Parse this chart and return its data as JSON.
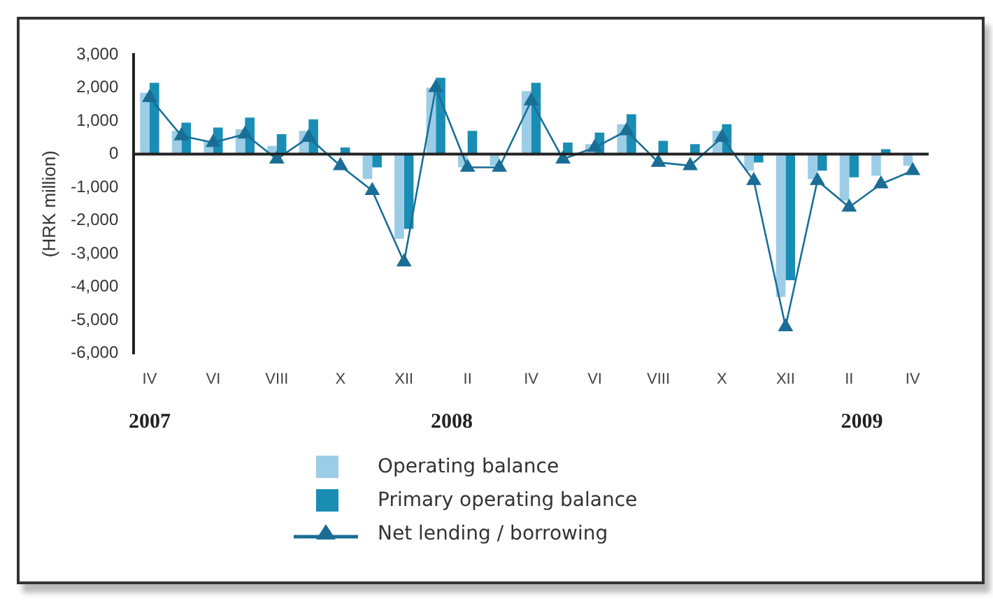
{
  "chart_data": {
    "type": "bar",
    "ylabel": "(HRK million)",
    "categories": [
      "IV",
      null,
      "VI",
      null,
      "VIII",
      null,
      "X",
      null,
      "XII",
      null,
      "II",
      null,
      "IV",
      null,
      "VI",
      null,
      "VIII",
      null,
      "X",
      null,
      "XII",
      null,
      "II",
      null,
      "IV"
    ],
    "series": [
      {
        "name": "Operating balance",
        "color": "#9ccde6",
        "values": [
          1850,
          700,
          400,
          750,
          250,
          700,
          0,
          -750,
          -2550,
          2000,
          -400,
          -350,
          1900,
          0,
          300,
          900,
          0,
          0,
          700,
          -500,
          -4300,
          -750,
          -1400,
          -650,
          -350
        ]
      },
      {
        "name": "Primary operating balance",
        "color": "#1a8db5",
        "values": [
          2150,
          950,
          800,
          1100,
          600,
          1050,
          200,
          -400,
          -2250,
          2300,
          700,
          0,
          2150,
          350,
          650,
          1200,
          400,
          300,
          900,
          -250,
          -3800,
          -500,
          -700,
          150,
          0
        ]
      },
      {
        "name": "Net lending / borrowing",
        "type": "line",
        "color": "#1a6e96",
        "marker": "triangle",
        "values": [
          1700,
          550,
          350,
          600,
          -150,
          500,
          -350,
          -1100,
          -3250,
          2000,
          -400,
          -400,
          1600,
          -150,
          200,
          700,
          -250,
          -350,
          500,
          -800,
          -5200,
          -800,
          -1600,
          -900,
          -500
        ]
      }
    ],
    "ylim": [
      -6000,
      3000
    ],
    "yticks": [
      {
        "value": -6000,
        "label": "-6,000"
      },
      {
        "value": -5000,
        "label": "-5,000"
      },
      {
        "value": -4000,
        "label": "-4,000"
      },
      {
        "value": -3000,
        "label": "-3,000"
      },
      {
        "value": -2000,
        "label": "-2,000"
      },
      {
        "value": -1000,
        "label": "-1,000"
      },
      0,
      {
        "value": 1000,
        "label": "1,000"
      },
      {
        "value": 2000,
        "label": "2,000"
      },
      {
        "value": 3000,
        "label": "3,000"
      }
    ],
    "grid": false,
    "legend": "bottom",
    "ref_lines": [
      {
        "axis": "y",
        "value": 0,
        "color": "#222222"
      }
    ],
    "annotations": [
      "2007",
      "2008",
      "2009"
    ]
  }
}
